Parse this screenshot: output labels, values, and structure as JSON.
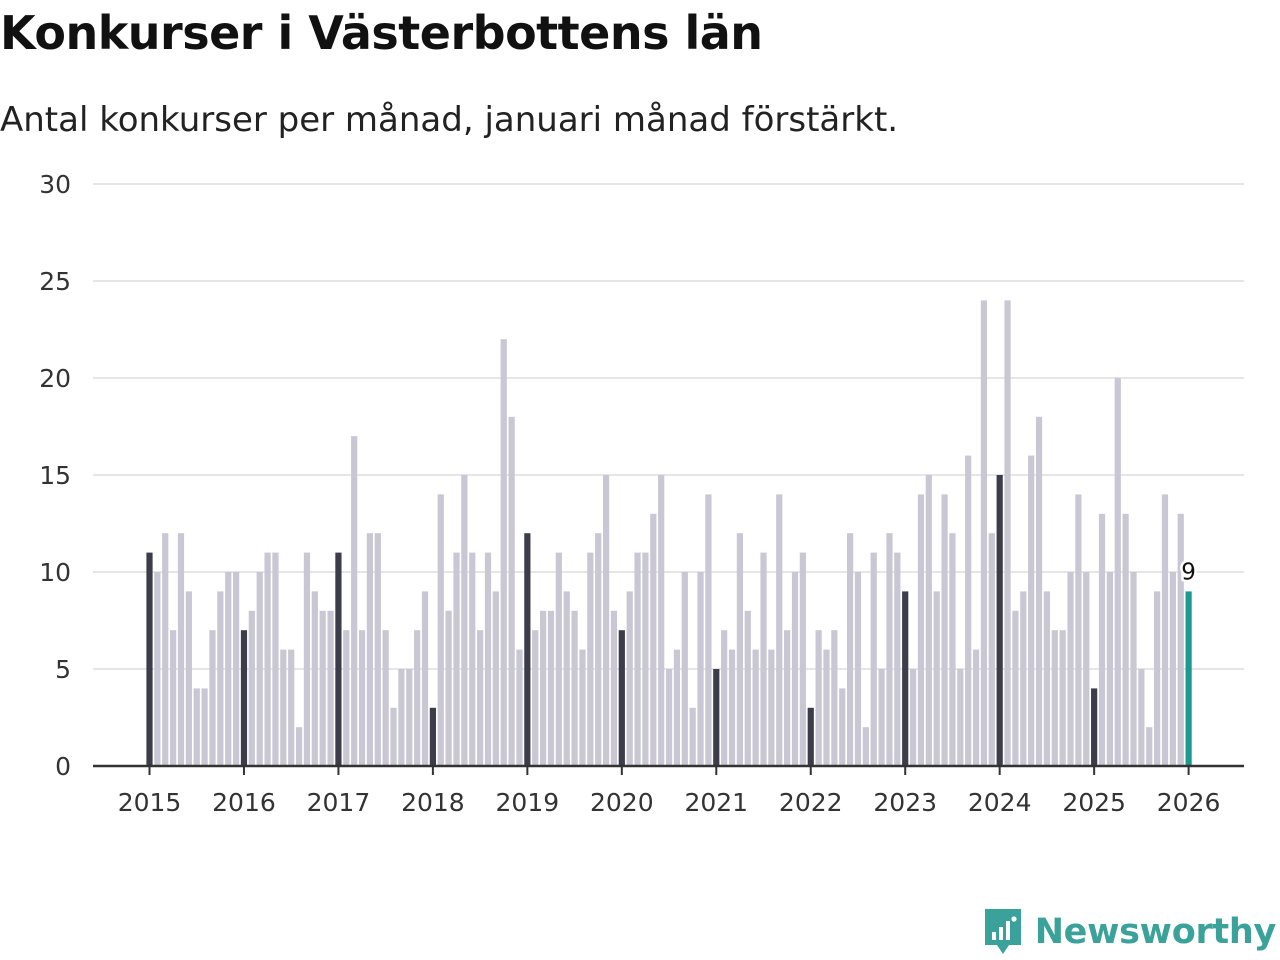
{
  "title": "Konkurser i Västerbottens län",
  "subtitle": "Antal konkurser per månad, januari månad förstärkt.",
  "brand": {
    "name": "Newsworthy",
    "icon": "newsworthy-logo-icon"
  },
  "colors": {
    "bar": "#c8c7d3",
    "january": "#3d3c4b",
    "latest": "#1c9a8f",
    "grid": "#dddddd",
    "axis": "#333333",
    "brand": "#3aa29b"
  },
  "chart_data": {
    "type": "bar",
    "title": "Konkurser i Västerbottens län",
    "subtitle": "Antal konkurser per månad, januari månad förstärkt.",
    "xlabel": "",
    "ylabel": "",
    "ylim": [
      0,
      30
    ],
    "yticks": [
      "0",
      "5",
      "10",
      "15",
      "20",
      "25",
      "30"
    ],
    "xticks": [
      "2015",
      "2016",
      "2017",
      "2018",
      "2019",
      "2020",
      "2021",
      "2022",
      "2023",
      "2024",
      "2025",
      "2026"
    ],
    "start": "2015-01",
    "grid": true,
    "highlight_last_label": "9",
    "series": [
      {
        "year": "2015",
        "values": [
          11,
          10,
          12,
          7,
          12,
          9,
          4,
          4,
          7,
          9,
          10,
          10
        ]
      },
      {
        "year": "2016",
        "values": [
          7,
          8,
          10,
          11,
          11,
          6,
          6,
          2,
          11,
          9,
          8,
          8
        ]
      },
      {
        "year": "2017",
        "values": [
          11,
          7,
          17,
          7,
          12,
          12,
          7,
          3,
          5,
          5,
          7,
          9
        ]
      },
      {
        "year": "2018",
        "values": [
          3,
          14,
          8,
          11,
          15,
          11,
          7,
          11,
          9,
          22,
          18,
          6
        ]
      },
      {
        "year": "2019",
        "values": [
          12,
          7,
          8,
          8,
          11,
          9,
          8,
          6,
          11,
          12,
          15,
          8
        ]
      },
      {
        "year": "2020",
        "values": [
          7,
          9,
          11,
          11,
          13,
          15,
          5,
          6,
          10,
          3,
          10,
          14
        ]
      },
      {
        "year": "2021",
        "values": [
          5,
          7,
          6,
          12,
          8,
          6,
          11,
          6,
          14,
          7,
          10,
          11
        ]
      },
      {
        "year": "2022",
        "values": [
          3,
          7,
          6,
          7,
          4,
          12,
          10,
          2,
          11,
          5,
          12,
          11
        ]
      },
      {
        "year": "2023",
        "values": [
          9,
          5,
          14,
          15,
          9,
          14,
          12,
          5,
          16,
          6,
          24,
          12
        ]
      },
      {
        "year": "2024",
        "values": [
          15,
          24,
          8,
          9,
          16,
          18,
          9,
          7,
          7,
          10,
          14,
          10
        ]
      },
      {
        "year": "2025",
        "values": [
          4,
          13,
          10,
          20,
          13,
          10,
          5,
          2,
          9,
          14,
          10,
          13
        ]
      },
      {
        "year": "2026",
        "values": [
          9
        ]
      }
    ]
  }
}
